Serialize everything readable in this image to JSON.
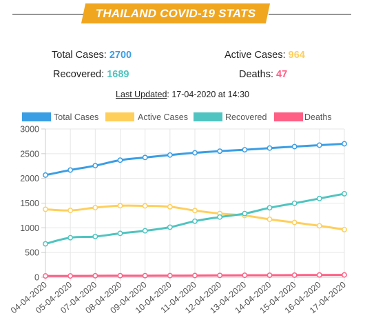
{
  "header": {
    "title": "THAILAND COVID-19 STATS"
  },
  "stats": {
    "total_label": "Total Cases: ",
    "total_value": "2700",
    "active_label": "Active Cases: ",
    "active_value": "964",
    "recovered_label": "Recovered: ",
    "recovered_value": "1689",
    "deaths_label": "Deaths: ",
    "deaths_value": "47"
  },
  "last_updated": {
    "label": "Last Updated",
    "value": ": 17-04-2020 at 14:30"
  },
  "colors": {
    "total": "#3a9ee4",
    "active": "#ffcf5c",
    "recovered": "#4fc4c0",
    "deaths": "#ff5f85",
    "total_text": "#3a9ee4",
    "active_text": "#ffcf5c",
    "recovered_text": "#4fc4c0",
    "deaths_text": "#ff5f85"
  },
  "chart_data": {
    "type": "line",
    "categories": [
      "04-04-2020",
      "05-04-2020",
      "07-04-2020",
      "08-04-2020",
      "09-04-2020",
      "10-04-2020",
      "11-04-2020",
      "12-04-2020",
      "13-04-2020",
      "14-04-2020",
      "15-04-2020",
      "16-04-2020",
      "17-04-2020"
    ],
    "series": [
      {
        "name": "Total Cases",
        "color": "#3a9ee4",
        "values": [
          2067,
          2169,
          2258,
          2369,
          2423,
          2473,
          2518,
          2551,
          2579,
          2613,
          2643,
          2672,
          2700
        ]
      },
      {
        "name": "Active Cases",
        "color": "#ffcf5c",
        "values": [
          1375,
          1352,
          1409,
          1447,
          1444,
          1426,
          1349,
          1289,
          1249,
          1172,
          1108,
          1041,
          964
        ]
      },
      {
        "name": "Recovered",
        "color": "#4fc4c0",
        "values": [
          676,
          800,
          824,
          888,
          940,
          1013,
          1135,
          1218,
          1288,
          1405,
          1497,
          1593,
          1689
        ]
      },
      {
        "name": "Deaths",
        "color": "#ff5f85",
        "values": [
          26,
          26,
          30,
          32,
          32,
          33,
          35,
          38,
          40,
          41,
          43,
          46,
          47
        ]
      }
    ],
    "yticks": [
      0,
      500,
      1000,
      1500,
      2000,
      2500,
      3000
    ],
    "ylim": [
      0,
      3000
    ],
    "legend_position": "top",
    "grid": true
  }
}
